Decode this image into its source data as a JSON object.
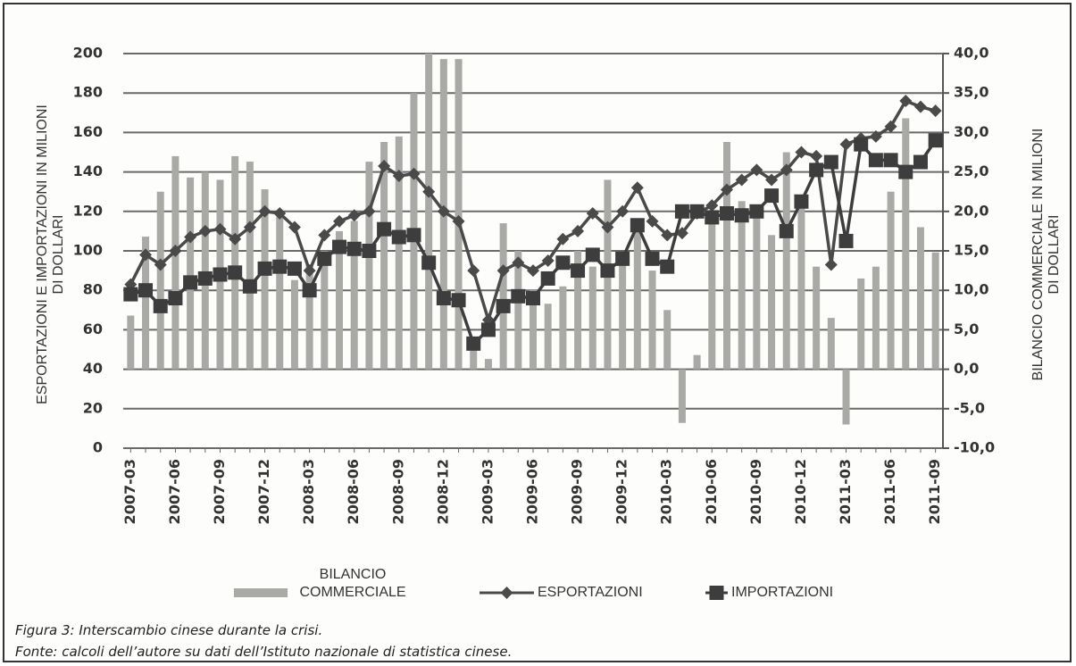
{
  "chart_data": {
    "type": "bar",
    "y_label": "ESPORTAZIONI E IMPORTAZIONI IN MILIONI DI DOLLARI",
    "y2_label": "BILANCIO COMMERCIALE IN MILIONI DI DOLLARI",
    "categories": [
      "2007-03",
      null,
      null,
      "2007-06",
      null,
      null,
      "2007-09",
      null,
      null,
      "2007-12",
      null,
      null,
      "2008-03",
      null,
      null,
      "2008-06",
      null,
      null,
      "2008-09",
      null,
      null,
      "2008-12",
      null,
      null,
      "2009-03",
      null,
      null,
      "2009-06",
      null,
      null,
      "2009-09",
      null,
      null,
      "2009-12",
      null,
      null,
      "2010-03",
      null,
      null,
      "2010-06",
      null,
      null,
      "2010-09",
      null,
      null,
      "2010-12",
      null,
      null,
      "2011-03",
      null,
      null,
      "2011-06",
      null,
      null,
      "2011-09"
    ],
    "series": [
      {
        "name": "BILANCIO COMMERCIALE",
        "type": "bar",
        "axis": "y2",
        "color": "#a9a9a6",
        "values": [
          6.8,
          16.8,
          22.5,
          27.0,
          24.3,
          25.0,
          24.0,
          27.0,
          26.3,
          22.8,
          19.3,
          11.3,
          13.3,
          15.0,
          17.5,
          18.8,
          26.3,
          28.8,
          29.5,
          35.0,
          40.0,
          39.3,
          39.3,
          2.5,
          1.3,
          18.5,
          15.0,
          10.0,
          8.3,
          10.5,
          15.0,
          13.0,
          24.0,
          13.8,
          18.8,
          12.5,
          7.5,
          -6.8,
          1.8,
          20.0,
          28.8,
          21.3,
          19.5,
          17.0,
          27.5,
          22.0,
          13.0,
          6.5,
          -7.0,
          11.5,
          13.0,
          22.5,
          31.8,
          18.0,
          14.8
        ]
      },
      {
        "name": "ESPORTAZIONI",
        "type": "line",
        "marker": "diamond",
        "color": "#4a4a4a",
        "values": [
          83,
          98,
          93,
          100,
          107,
          110,
          111,
          106,
          112,
          120,
          119,
          112,
          90,
          108,
          115,
          118,
          120,
          143,
          138,
          139,
          130,
          120,
          115,
          90,
          65,
          90,
          94,
          90,
          95,
          106,
          110,
          119,
          112,
          120,
          132,
          115,
          108,
          109,
          119,
          123,
          131,
          136,
          141,
          136,
          141,
          150,
          148,
          93,
          154,
          157,
          158,
          163,
          176,
          173,
          171
        ]
      },
      {
        "name": "IMPORTAZIONI",
        "type": "line",
        "marker": "square",
        "color": "#3d3d3d",
        "values": [
          78,
          80,
          72,
          76,
          84,
          86,
          88,
          89,
          82,
          91,
          92,
          91,
          80,
          96,
          102,
          101,
          100,
          111,
          107,
          108,
          94,
          76,
          75,
          53,
          60,
          72,
          77,
          76,
          86,
          94,
          90,
          98,
          90,
          96,
          113,
          96,
          92,
          120,
          120,
          117,
          119,
          118,
          120,
          128,
          110,
          125,
          141,
          145,
          105,
          154,
          146,
          146,
          140,
          145,
          156
        ]
      }
    ],
    "ylim": [
      0,
      200
    ],
    "yticks": [
      0,
      20,
      40,
      60,
      80,
      100,
      120,
      140,
      160,
      180,
      200
    ],
    "y2lim": [
      -10,
      40
    ],
    "y2ticks": [
      {
        "value": -10,
        "label": "-10,0"
      },
      {
        "value": -5,
        "label": "-5,0"
      },
      {
        "value": 0,
        "label": "0,0"
      },
      {
        "value": 5,
        "label": "5,0"
      },
      {
        "value": 10,
        "label": "10,0"
      },
      {
        "value": 15,
        "label": "15,0"
      },
      {
        "value": 20,
        "label": "20,0"
      },
      {
        "value": 25,
        "label": "25,0"
      },
      {
        "value": 30,
        "label": "30,0"
      },
      {
        "value": 35,
        "label": "35,0"
      },
      {
        "value": 40,
        "label": "40,0"
      }
    ],
    "grid": true,
    "legend": "bottom"
  },
  "captions": [
    "Figura 3: Interscambio cinese durante la crisi.",
    "Fonte: calcoli dell’autore su dati dell’Istituto nazionale di statistica cinese."
  ]
}
